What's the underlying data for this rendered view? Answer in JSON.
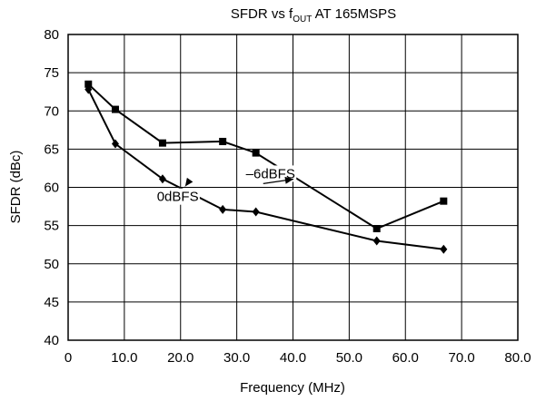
{
  "chart_data": {
    "type": "line",
    "title": {
      "prefix": "SFDR vs f",
      "subscript": "OUT",
      "suffix": " AT 165MSPS"
    },
    "xlabel": "Frequency (MHz)",
    "ylabel": "SFDR (dBc)",
    "xlim": [
      0,
      80
    ],
    "ylim": [
      40,
      80
    ],
    "xticks": [
      0,
      10,
      20,
      30,
      40,
      50,
      60,
      70,
      80
    ],
    "xtick_labels": [
      "0",
      "10.0",
      "20.0",
      "30.0",
      "40.0",
      "50.0",
      "60.0",
      "70.0",
      "80.0"
    ],
    "yticks": [
      40,
      45,
      50,
      55,
      60,
      65,
      70,
      75,
      80
    ],
    "ytick_labels": [
      "40",
      "45",
      "50",
      "55",
      "60",
      "65",
      "70",
      "75",
      "80"
    ],
    "grid": true,
    "series": [
      {
        "name": "–6dBFS",
        "marker": "square",
        "x": [
          3.6,
          8.4,
          16.8,
          27.5,
          33.4,
          54.9,
          66.8
        ],
        "y": [
          73.5,
          70.2,
          65.8,
          66.0,
          64.5,
          54.6,
          58.2
        ]
      },
      {
        "name": "0dBFS",
        "marker": "diamond",
        "x": [
          3.6,
          8.4,
          16.8,
          27.5,
          33.4,
          54.9,
          66.8
        ],
        "y": [
          72.8,
          65.7,
          61.1,
          57.1,
          56.8,
          53.0,
          51.9
        ]
      }
    ],
    "annotations": [
      {
        "series": 0,
        "text": "–6dBFS",
        "at": [
          36.0,
          61.2
        ]
      },
      {
        "series": 1,
        "text": "0dBFS",
        "at": [
          19.5,
          58.2
        ]
      }
    ],
    "colors": {
      "line": "#000000",
      "grid": "#000000",
      "background": "#ffffff"
    }
  }
}
